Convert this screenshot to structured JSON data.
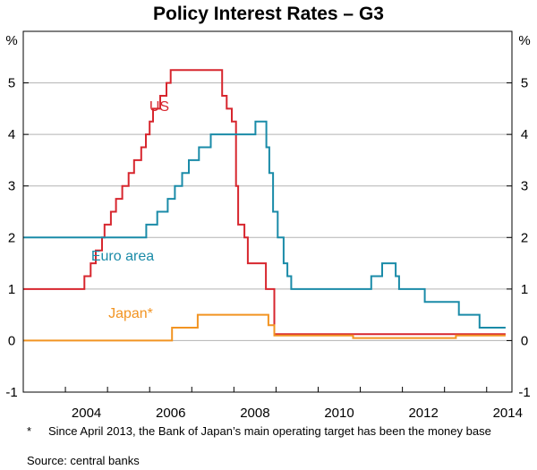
{
  "chart_data": {
    "type": "line",
    "title": "Policy Interest Rates – G3",
    "y_unit_left": "%",
    "y_unit_right": "%",
    "ylim": [
      -1,
      6
    ],
    "yticks": [
      -1,
      0,
      1,
      2,
      3,
      4,
      5
    ],
    "xlim": [
      2003.0,
      2014.6
    ],
    "xticks": [
      2004,
      2006,
      2008,
      2010,
      2012,
      2014
    ],
    "series": [
      {
        "name": "US",
        "label": "US",
        "color": "#d7262e",
        "points": [
          [
            2003.0,
            1.0
          ],
          [
            2004.45,
            1.0
          ],
          [
            2004.45,
            1.25
          ],
          [
            2004.6,
            1.25
          ],
          [
            2004.6,
            1.5
          ],
          [
            2004.72,
            1.5
          ],
          [
            2004.72,
            1.75
          ],
          [
            2004.87,
            1.75
          ],
          [
            2004.87,
            2.0
          ],
          [
            2004.93,
            2.0
          ],
          [
            2004.93,
            2.25
          ],
          [
            2005.08,
            2.25
          ],
          [
            2005.08,
            2.5
          ],
          [
            2005.2,
            2.5
          ],
          [
            2005.2,
            2.75
          ],
          [
            2005.35,
            2.75
          ],
          [
            2005.35,
            3.0
          ],
          [
            2005.5,
            3.0
          ],
          [
            2005.5,
            3.25
          ],
          [
            2005.63,
            3.25
          ],
          [
            2005.63,
            3.5
          ],
          [
            2005.8,
            3.5
          ],
          [
            2005.8,
            3.75
          ],
          [
            2005.91,
            3.75
          ],
          [
            2005.91,
            4.0
          ],
          [
            2006.0,
            4.0
          ],
          [
            2006.0,
            4.25
          ],
          [
            2006.08,
            4.25
          ],
          [
            2006.08,
            4.5
          ],
          [
            2006.25,
            4.5
          ],
          [
            2006.25,
            4.75
          ],
          [
            2006.4,
            4.75
          ],
          [
            2006.4,
            5.0
          ],
          [
            2006.5,
            5.0
          ],
          [
            2006.5,
            5.25
          ],
          [
            2007.72,
            5.25
          ],
          [
            2007.72,
            4.75
          ],
          [
            2007.83,
            4.75
          ],
          [
            2007.83,
            4.5
          ],
          [
            2007.95,
            4.5
          ],
          [
            2007.95,
            4.25
          ],
          [
            2008.05,
            4.25
          ],
          [
            2008.05,
            3.0
          ],
          [
            2008.1,
            3.0
          ],
          [
            2008.1,
            2.25
          ],
          [
            2008.25,
            2.25
          ],
          [
            2008.25,
            2.0
          ],
          [
            2008.33,
            2.0
          ],
          [
            2008.33,
            1.5
          ],
          [
            2008.76,
            1.5
          ],
          [
            2008.76,
            1.0
          ],
          [
            2008.96,
            1.0
          ],
          [
            2008.96,
            0.125
          ],
          [
            2014.45,
            0.125
          ]
        ]
      },
      {
        "name": "Euro area",
        "label": "Euro area",
        "color": "#1a8ba8",
        "points": [
          [
            2003.0,
            2.0
          ],
          [
            2005.92,
            2.0
          ],
          [
            2005.92,
            2.25
          ],
          [
            2006.18,
            2.25
          ],
          [
            2006.18,
            2.5
          ],
          [
            2006.43,
            2.5
          ],
          [
            2006.43,
            2.75
          ],
          [
            2006.6,
            2.75
          ],
          [
            2006.6,
            3.0
          ],
          [
            2006.77,
            3.0
          ],
          [
            2006.77,
            3.25
          ],
          [
            2006.93,
            3.25
          ],
          [
            2006.93,
            3.5
          ],
          [
            2007.17,
            3.5
          ],
          [
            2007.17,
            3.75
          ],
          [
            2007.45,
            3.75
          ],
          [
            2007.45,
            4.0
          ],
          [
            2008.51,
            4.0
          ],
          [
            2008.51,
            4.25
          ],
          [
            2008.77,
            4.25
          ],
          [
            2008.77,
            3.75
          ],
          [
            2008.84,
            3.75
          ],
          [
            2008.84,
            3.25
          ],
          [
            2008.93,
            3.25
          ],
          [
            2008.93,
            2.5
          ],
          [
            2009.04,
            2.5
          ],
          [
            2009.04,
            2.0
          ],
          [
            2009.18,
            2.0
          ],
          [
            2009.18,
            1.5
          ],
          [
            2009.27,
            1.5
          ],
          [
            2009.27,
            1.25
          ],
          [
            2009.36,
            1.25
          ],
          [
            2009.36,
            1.0
          ],
          [
            2011.26,
            1.0
          ],
          [
            2011.26,
            1.25
          ],
          [
            2011.52,
            1.25
          ],
          [
            2011.52,
            1.5
          ],
          [
            2011.84,
            1.5
          ],
          [
            2011.84,
            1.25
          ],
          [
            2011.92,
            1.25
          ],
          [
            2011.92,
            1.0
          ],
          [
            2012.53,
            1.0
          ],
          [
            2012.53,
            0.75
          ],
          [
            2013.34,
            0.75
          ],
          [
            2013.34,
            0.5
          ],
          [
            2013.83,
            0.5
          ],
          [
            2013.83,
            0.25
          ],
          [
            2014.45,
            0.25
          ]
        ]
      },
      {
        "name": "Japan*",
        "label": "Japan*",
        "color": "#f29422",
        "points": [
          [
            2003.0,
            0.0
          ],
          [
            2006.53,
            0.0
          ],
          [
            2006.53,
            0.25
          ],
          [
            2007.14,
            0.25
          ],
          [
            2007.14,
            0.5
          ],
          [
            2008.82,
            0.5
          ],
          [
            2008.82,
            0.3
          ],
          [
            2008.96,
            0.3
          ],
          [
            2008.96,
            0.1
          ],
          [
            2010.83,
            0.1
          ],
          [
            2010.83,
            0.05
          ],
          [
            2013.27,
            0.05
          ],
          [
            2013.27,
            0.1
          ],
          [
            2014.45,
            0.1
          ]
        ]
      }
    ]
  },
  "notes": {
    "footnote_marker": "*",
    "footnote": "Since April 2013, the Bank of Japan’s main operating target has been the money base",
    "source": "Source: central banks"
  }
}
